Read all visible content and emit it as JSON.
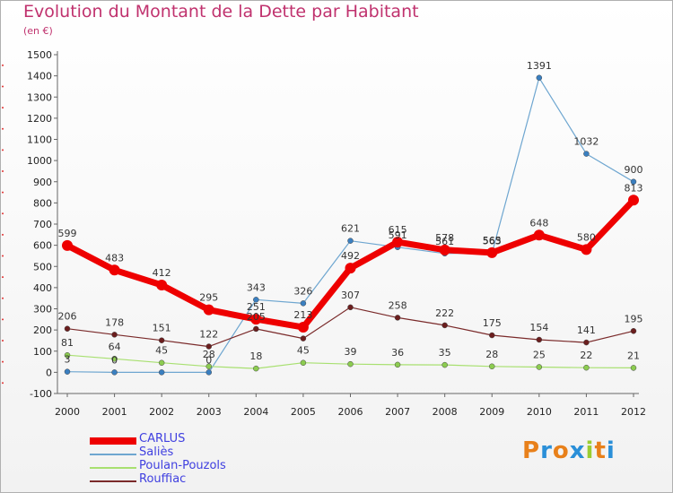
{
  "title": "Evolution du Montant de la Dette par Habitant",
  "subtitle": "(en €)",
  "logo": {
    "letters": [
      "P",
      "r",
      "o",
      "x",
      "i",
      "t",
      "i"
    ],
    "colors": [
      "#e8801a",
      "#2a8fd8",
      "#e8801a",
      "#2a8fd8",
      "#9acd32",
      "#e8801a",
      "#2a8fd8"
    ]
  },
  "chart_data": {
    "type": "line",
    "title": "Evolution du Montant de la Dette par Habitant",
    "subtitle": "(en €)",
    "x": [
      "2000",
      "2001",
      "2002",
      "2003",
      "2004",
      "2005",
      "2006",
      "2007",
      "2008",
      "2009",
      "2010",
      "2011",
      "2012"
    ],
    "ylim": [
      -100,
      1500
    ],
    "yticks": [
      -100,
      0,
      100,
      200,
      300,
      400,
      500,
      600,
      700,
      800,
      900,
      1000,
      1100,
      1200,
      1300,
      1400,
      1500
    ],
    "grid": false,
    "legend_position": "bottom-left",
    "series": [
      {
        "name": "CARLUS",
        "color": "#ee0000",
        "width": 7,
        "values": [
          599,
          483,
          412,
          295,
          251,
          213,
          492,
          615,
          578,
          565,
          648,
          580,
          813
        ],
        "labels": [
          "599",
          "483",
          "412",
          "295",
          "251",
          "213",
          "492",
          "615",
          "578",
          "565",
          "648",
          "580",
          "813"
        ]
      },
      {
        "name": "Saliès",
        "color": "#6ea6d0",
        "width": 1.2,
        "values": [
          3,
          0,
          0,
          0,
          343,
          326,
          621,
          591,
          561,
          563,
          1391,
          1032,
          900
        ],
        "labels": [
          "3",
          "0",
          "",
          "0",
          "343",
          "326",
          "621",
          "591",
          "561",
          "563",
          "1391",
          "1032",
          "900"
        ]
      },
      {
        "name": "Poulan-Pouzols",
        "color": "#a8e070",
        "width": 1.2,
        "values": [
          81,
          64,
          45,
          28,
          18,
          45,
          39,
          36,
          35,
          28,
          25,
          22,
          21
        ],
        "labels": [
          "81",
          "64",
          "45",
          "28",
          "18",
          "45",
          "39",
          "36",
          "35",
          "28",
          "25",
          "22",
          "21"
        ]
      },
      {
        "name": "Rouffiac",
        "color": "#7a2a2a",
        "width": 1.2,
        "values": [
          206,
          178,
          151,
          122,
          205,
          160,
          307,
          258,
          222,
          175,
          154,
          141,
          195
        ],
        "labels": [
          "206",
          "178",
          "151",
          "122",
          "205",
          "",
          "307",
          "258",
          "222",
          "175",
          "154",
          "141",
          "195"
        ]
      }
    ]
  }
}
